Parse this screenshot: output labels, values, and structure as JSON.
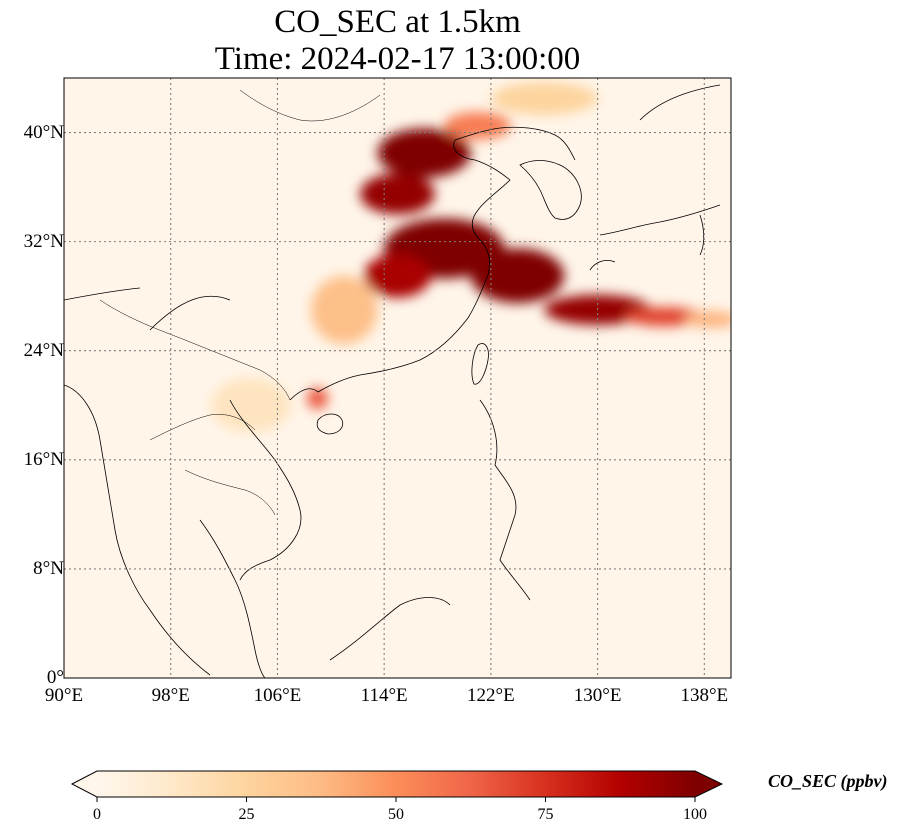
{
  "title": {
    "line1": "CO_SEC at 1.5km",
    "line2": "Time: 2024-02-17 13:00:00"
  },
  "map": {
    "projection": "PlateCarree",
    "lon_range": [
      90,
      140
    ],
    "lat_range": [
      0,
      44
    ],
    "gridlines": "dotted",
    "lat_ticks": [
      {
        "value": 0,
        "label": "0°"
      },
      {
        "value": 8,
        "label": "8°N"
      },
      {
        "value": 16,
        "label": "16°N"
      },
      {
        "value": 24,
        "label": "24°N"
      },
      {
        "value": 32,
        "label": "32°N"
      },
      {
        "value": 40,
        "label": "40°N"
      }
    ],
    "lon_ticks": [
      {
        "value": 90,
        "label": "90°E"
      },
      {
        "value": 98,
        "label": "98°E"
      },
      {
        "value": 106,
        "label": "106°E"
      },
      {
        "value": 114,
        "label": "114°E"
      },
      {
        "value": 122,
        "label": "122°E"
      },
      {
        "value": 130,
        "label": "130°E"
      },
      {
        "value": 138,
        "label": "138°E"
      }
    ],
    "field_description_units": "ppbv",
    "plumes": [
      {
        "lon": 117,
        "lat": 38.5,
        "rlon": 3.5,
        "rlat": 1.8,
        "level": 100
      },
      {
        "lon": 115,
        "lat": 35.5,
        "rlon": 2.8,
        "rlat": 1.5,
        "level": 95
      },
      {
        "lon": 118.5,
        "lat": 31.5,
        "rlon": 4.5,
        "rlat": 2.2,
        "level": 100
      },
      {
        "lon": 115,
        "lat": 29.5,
        "rlon": 2.5,
        "rlat": 1.6,
        "level": 90
      },
      {
        "lon": 124,
        "lat": 29.5,
        "rlon": 3.5,
        "rlat": 2.0,
        "level": 100
      },
      {
        "lon": 130,
        "lat": 27.0,
        "rlon": 4.0,
        "rlat": 1.1,
        "level": 95
      },
      {
        "lon": 135,
        "lat": 26.5,
        "rlon": 3.0,
        "rlat": 0.7,
        "level": 70
      },
      {
        "lon": 138.5,
        "lat": 26.3,
        "rlon": 2.0,
        "rlat": 0.6,
        "level": 40
      },
      {
        "lon": 109,
        "lat": 20.5,
        "rlon": 0.8,
        "rlat": 0.8,
        "level": 65
      },
      {
        "lon": 121,
        "lat": 40.5,
        "rlon": 2.5,
        "rlat": 1.0,
        "level": 55
      },
      {
        "lon": 111,
        "lat": 27.0,
        "rlon": 2.5,
        "rlat": 2.5,
        "level": 35
      },
      {
        "lon": 126,
        "lat": 42.5,
        "rlon": 4.0,
        "rlat": 1.2,
        "level": 25
      },
      {
        "lon": 104,
        "lat": 20.0,
        "rlon": 3.0,
        "rlat": 2.0,
        "level": 15
      }
    ]
  },
  "colorbar": {
    "label": "CO_SEC (ppbv)",
    "colormap": "OrRd",
    "min": 0,
    "max": 100,
    "extend": "both",
    "ticks": [
      {
        "value": 0,
        "label": "0"
      },
      {
        "value": 25,
        "label": "25"
      },
      {
        "value": 50,
        "label": "50"
      },
      {
        "value": 75,
        "label": "75"
      },
      {
        "value": 100,
        "label": "100"
      }
    ],
    "colors": [
      "#fff7ec",
      "#fee8c8",
      "#fdd49e",
      "#fdbb84",
      "#fc8d59",
      "#ef6548",
      "#d7301f",
      "#b30000",
      "#7f0000"
    ]
  }
}
